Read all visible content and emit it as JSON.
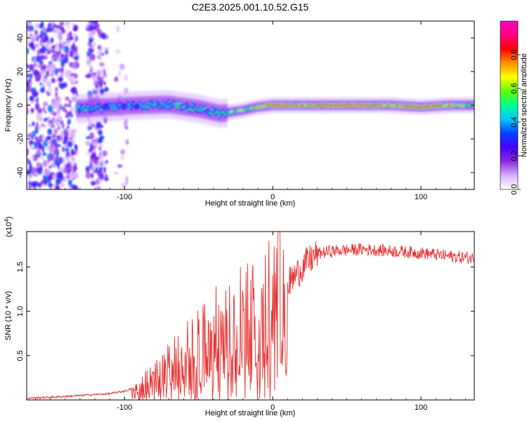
{
  "title": "C2E3.2025.001.10.52.G15",
  "chart_data": [
    {
      "type": "heatmap",
      "xlabel": "Height of straight line (km)",
      "ylabel": "Frequency (Hz)",
      "xlim": [
        -166,
        136
      ],
      "ylim": [
        -50,
        50
      ],
      "xticks": [
        -100,
        0,
        100
      ],
      "yticks": [
        -40,
        -20,
        0,
        20,
        40
      ],
      "colorbar": {
        "label": "Normalized spectral amplitude",
        "range": [
          0,
          1
        ],
        "ticks": [
          "0.0",
          "0.2",
          "0.4",
          "0.6",
          "0.8"
        ],
        "colors": [
          "#ffffff",
          "#d8b0ff",
          "#8a2be2",
          "#4b00ff",
          "#0040ff",
          "#00c8ff",
          "#00ff90",
          "#60ff00",
          "#ffff00",
          "#ff9000",
          "#ff0000",
          "#ff0080",
          "#ff00c0"
        ]
      },
      "ridge": {
        "x": [
          -130,
          -110,
          -90,
          -70,
          -50,
          -35,
          -20,
          -10,
          0,
          10,
          20,
          40,
          60,
          80,
          100,
          120,
          136
        ],
        "freq": [
          -2,
          -1,
          0,
          0.5,
          -2,
          -5,
          -3,
          -1,
          0,
          0,
          0,
          0,
          0,
          0,
          -1,
          0,
          0
        ],
        "amplitude": [
          0.45,
          0.4,
          0.45,
          0.5,
          0.45,
          0.5,
          0.6,
          0.7,
          0.9,
          0.85,
          0.8,
          0.9,
          0.9,
          0.75,
          0.95,
          0.7,
          0.6
        ]
      }
    },
    {
      "type": "line",
      "xlabel": "Height of straight line (km)",
      "ylabel": "SNR (10 * v/v)",
      "yscale_label": "(x10",
      "yscale_exp": "4",
      "xlim": [
        -166,
        136
      ],
      "ylim": [
        0,
        1.9
      ],
      "xticks": [
        -100,
        0,
        100
      ],
      "yticks": [
        "0.5",
        "1.0",
        "1.5"
      ],
      "series": [
        {
          "color": "#e83030",
          "x": [
            -166,
            -150,
            -130,
            -120,
            -110,
            -100,
            -90,
            -80,
            -70,
            -60,
            -50,
            -40,
            -30,
            -20,
            -10,
            0,
            5,
            10,
            20,
            30,
            40,
            60,
            80,
            100,
            110,
            120,
            136
          ],
          "y": [
            0.02,
            0.03,
            0.05,
            0.06,
            0.07,
            0.1,
            0.15,
            0.25,
            0.38,
            0.5,
            0.6,
            0.72,
            0.8,
            0.88,
            0.95,
            1.1,
            1.25,
            1.3,
            1.5,
            1.65,
            1.68,
            1.7,
            1.68,
            1.66,
            1.64,
            1.62,
            1.6
          ]
        }
      ]
    }
  ]
}
